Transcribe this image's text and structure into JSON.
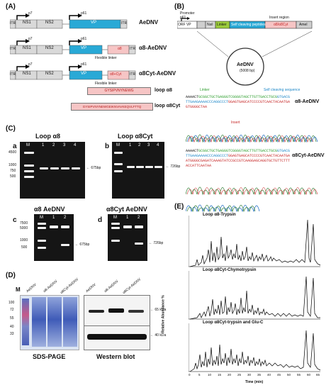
{
  "panels": {
    "A": "(A)",
    "B": "(B)",
    "C": "(C)",
    "D": "(D)",
    "E": "(E)"
  },
  "panel_a": {
    "constructs": [
      {
        "name": "AeDNV",
        "p7": "p7",
        "p61": "p61",
        "boxes": [
          "ITR",
          "NS1",
          "NS2",
          "VP",
          "ITR"
        ]
      },
      {
        "name": "α8-AeDNV",
        "p7": "p7",
        "p61": "p61",
        "boxes": [
          "ITR",
          "NS1",
          "NS2",
          "VP",
          "α8",
          "ITR"
        ],
        "linker": "Flexible linker"
      },
      {
        "name": "α8Cyt-AeDNV",
        "p7": "p7",
        "p61": "p61",
        "boxes": [
          "ITR",
          "NS1",
          "NS2",
          "VP",
          "α8+Cyt",
          "ITR"
        ],
        "linker": "Flexible linker"
      }
    ],
    "peptides": [
      {
        "seq": "GYSIPVNYNEWG",
        "label": "loop α8"
      },
      {
        "seq": "GYSIPVNYNEWGEIKNVAVKEQVLFTTQ",
        "label": "loop α8Cyt"
      }
    ]
  },
  "panel_b": {
    "promoter": "Promoter",
    "p61": "p61",
    "orf": "ORF VP",
    "segments": [
      "NsiI",
      "Linker",
      "Self cleaving peptides",
      "α8/α8Cyt",
      "AmeI"
    ],
    "insert_region": "Insert region",
    "plasmid": "AeDNV",
    "plasmid_size": "(5008 bp)",
    "annotations": {
      "linker": "Linker",
      "self_cleaving": "Self cleaving sequence",
      "insert": "Insert"
    },
    "seq1_label": "α8-AeDNV",
    "seq1": [
      "AAAACT",
      "GCGGCTGCTGAGGGTCGGGGTAGCTTGTTGACCTGCG",
      "GTGACGTTGAAGAAAACCCAGGCCCT",
      "GGAGTGAGCATCCCCGT",
      "CAACTACAATGAGTGGGGCTAA"
    ],
    "seq2_label": "α8Cyt-AeDNV",
    "seq2": [
      "AAAACT",
      "GCGGCTGCTGAGGGTCGGGGTAGCTTGTTGACCTGCG",
      "GTGACGTTGAAGAAAACCCAGGCCCT",
      "GGAGTGAGCATCCCCGTC",
      "AACTACAATGAATGGGGCGAGATCAAAGTATCCGCCGTCAAGGA",
      "GCAGGTGCTGTTCTTTACCATTCAATAA"
    ]
  },
  "panel_c": {
    "a": {
      "letter": "a",
      "title": "Loop α8",
      "lanes": [
        "M",
        "1",
        "2",
        "3",
        "4"
      ],
      "ladder": [
        "4500",
        "1000",
        "750",
        "500"
      ],
      "arrow": "675bp"
    },
    "b": {
      "letter": "b",
      "title": "Loop α8Cyt",
      "lanes": [
        "M",
        "1",
        "2",
        "3",
        "4"
      ],
      "arrow": "726bp"
    },
    "c": {
      "letter": "c",
      "title": "α8 AeDNV",
      "lanes": [
        "M",
        "1",
        "2"
      ],
      "ladder": [
        "7500",
        "5000",
        "1000",
        "500"
      ],
      "arrow": "675bp"
    },
    "d": {
      "letter": "d",
      "title": "α8Cyt AeDNV",
      "lanes": [
        "M",
        "1",
        "2"
      ],
      "arrow": "726bp"
    }
  },
  "panel_d": {
    "m": "M",
    "lanes": [
      "AeDNV",
      "α8-AeDNV",
      "α8Cyt-AeDNV"
    ],
    "markers": [
      "100",
      "72",
      "55",
      "40",
      "33"
    ],
    "sds_label": "SDS-PAGE",
    "wb_label": "Western blot",
    "kda": [
      "65 kDa",
      "40 kDa"
    ]
  },
  "panel_e": {
    "traces": [
      "Loop α8-Trypsin",
      "Loop α8Cyt-Chymotrypsin",
      "Loop α8Cyt-trypsin and Glu-C"
    ],
    "ylabel": "Relative Abundance %",
    "xlabel": "Time (min)",
    "xticks": [
      "0",
      "5",
      "10",
      "15",
      "20",
      "25",
      "30",
      "35",
      "40",
      "45",
      "50",
      "55",
      "60",
      "65"
    ]
  }
}
